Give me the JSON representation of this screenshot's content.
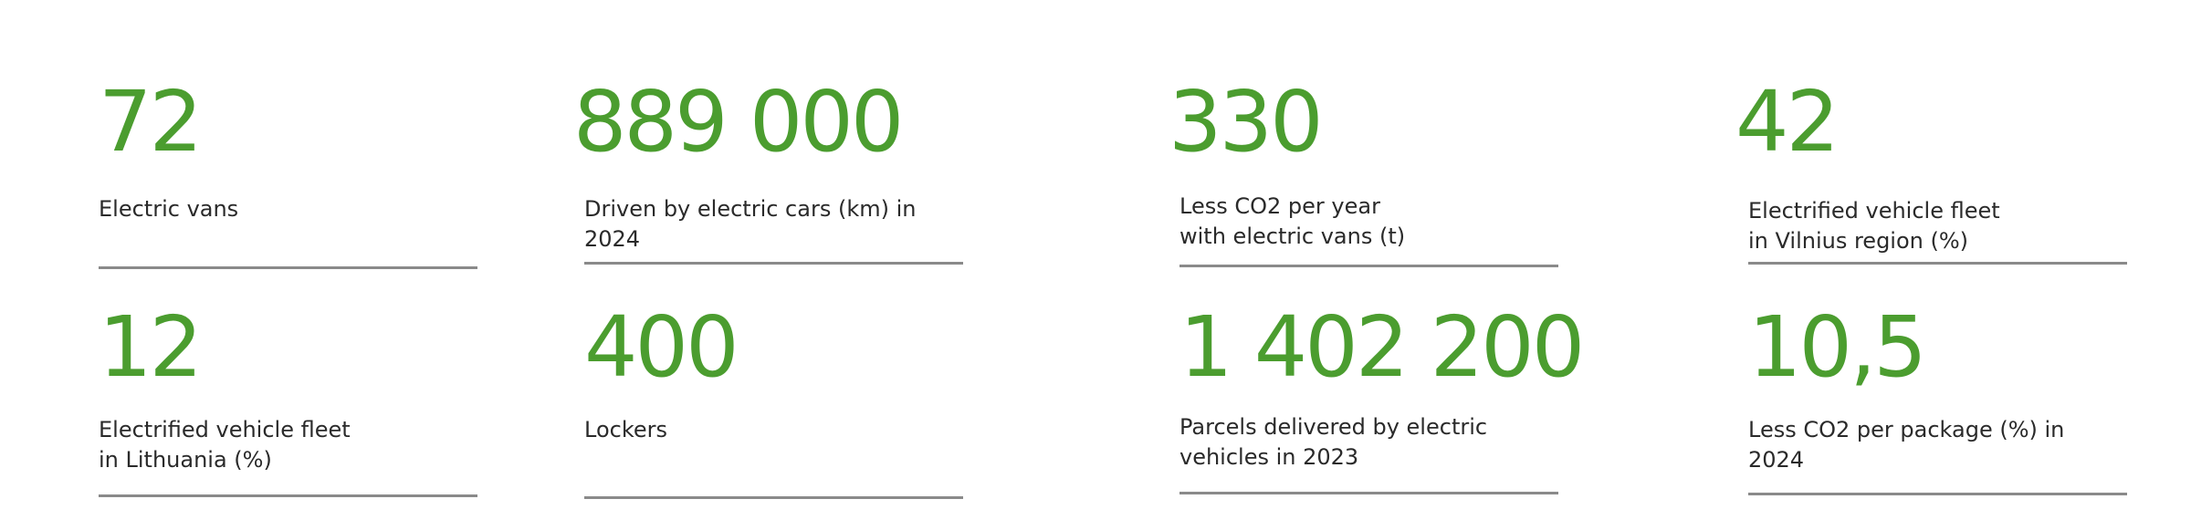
{
  "accent_color": "#4b9d2f",
  "stats": [
    {
      "value": "72",
      "label": "Electric vans"
    },
    {
      "value": "889 000",
      "label": "Driven by electric cars (km) in 2024"
    },
    {
      "value": "330",
      "label": "Less CO2 per year\nwith electric vans (t)"
    },
    {
      "value": "42",
      "label": "Electrified vehicle fleet\nin Vilnius region (%)"
    },
    {
      "value": "12",
      "label": "Electrified vehicle fleet\nin Lithuania (%)"
    },
    {
      "value": "400",
      "label": "Lockers"
    },
    {
      "value": "1 402 200",
      "label": "Parcels delivered by electric\nvehicles in 2023"
    },
    {
      "value": "10,5",
      "label": "Less CO2 per package (%) in 2024"
    }
  ]
}
